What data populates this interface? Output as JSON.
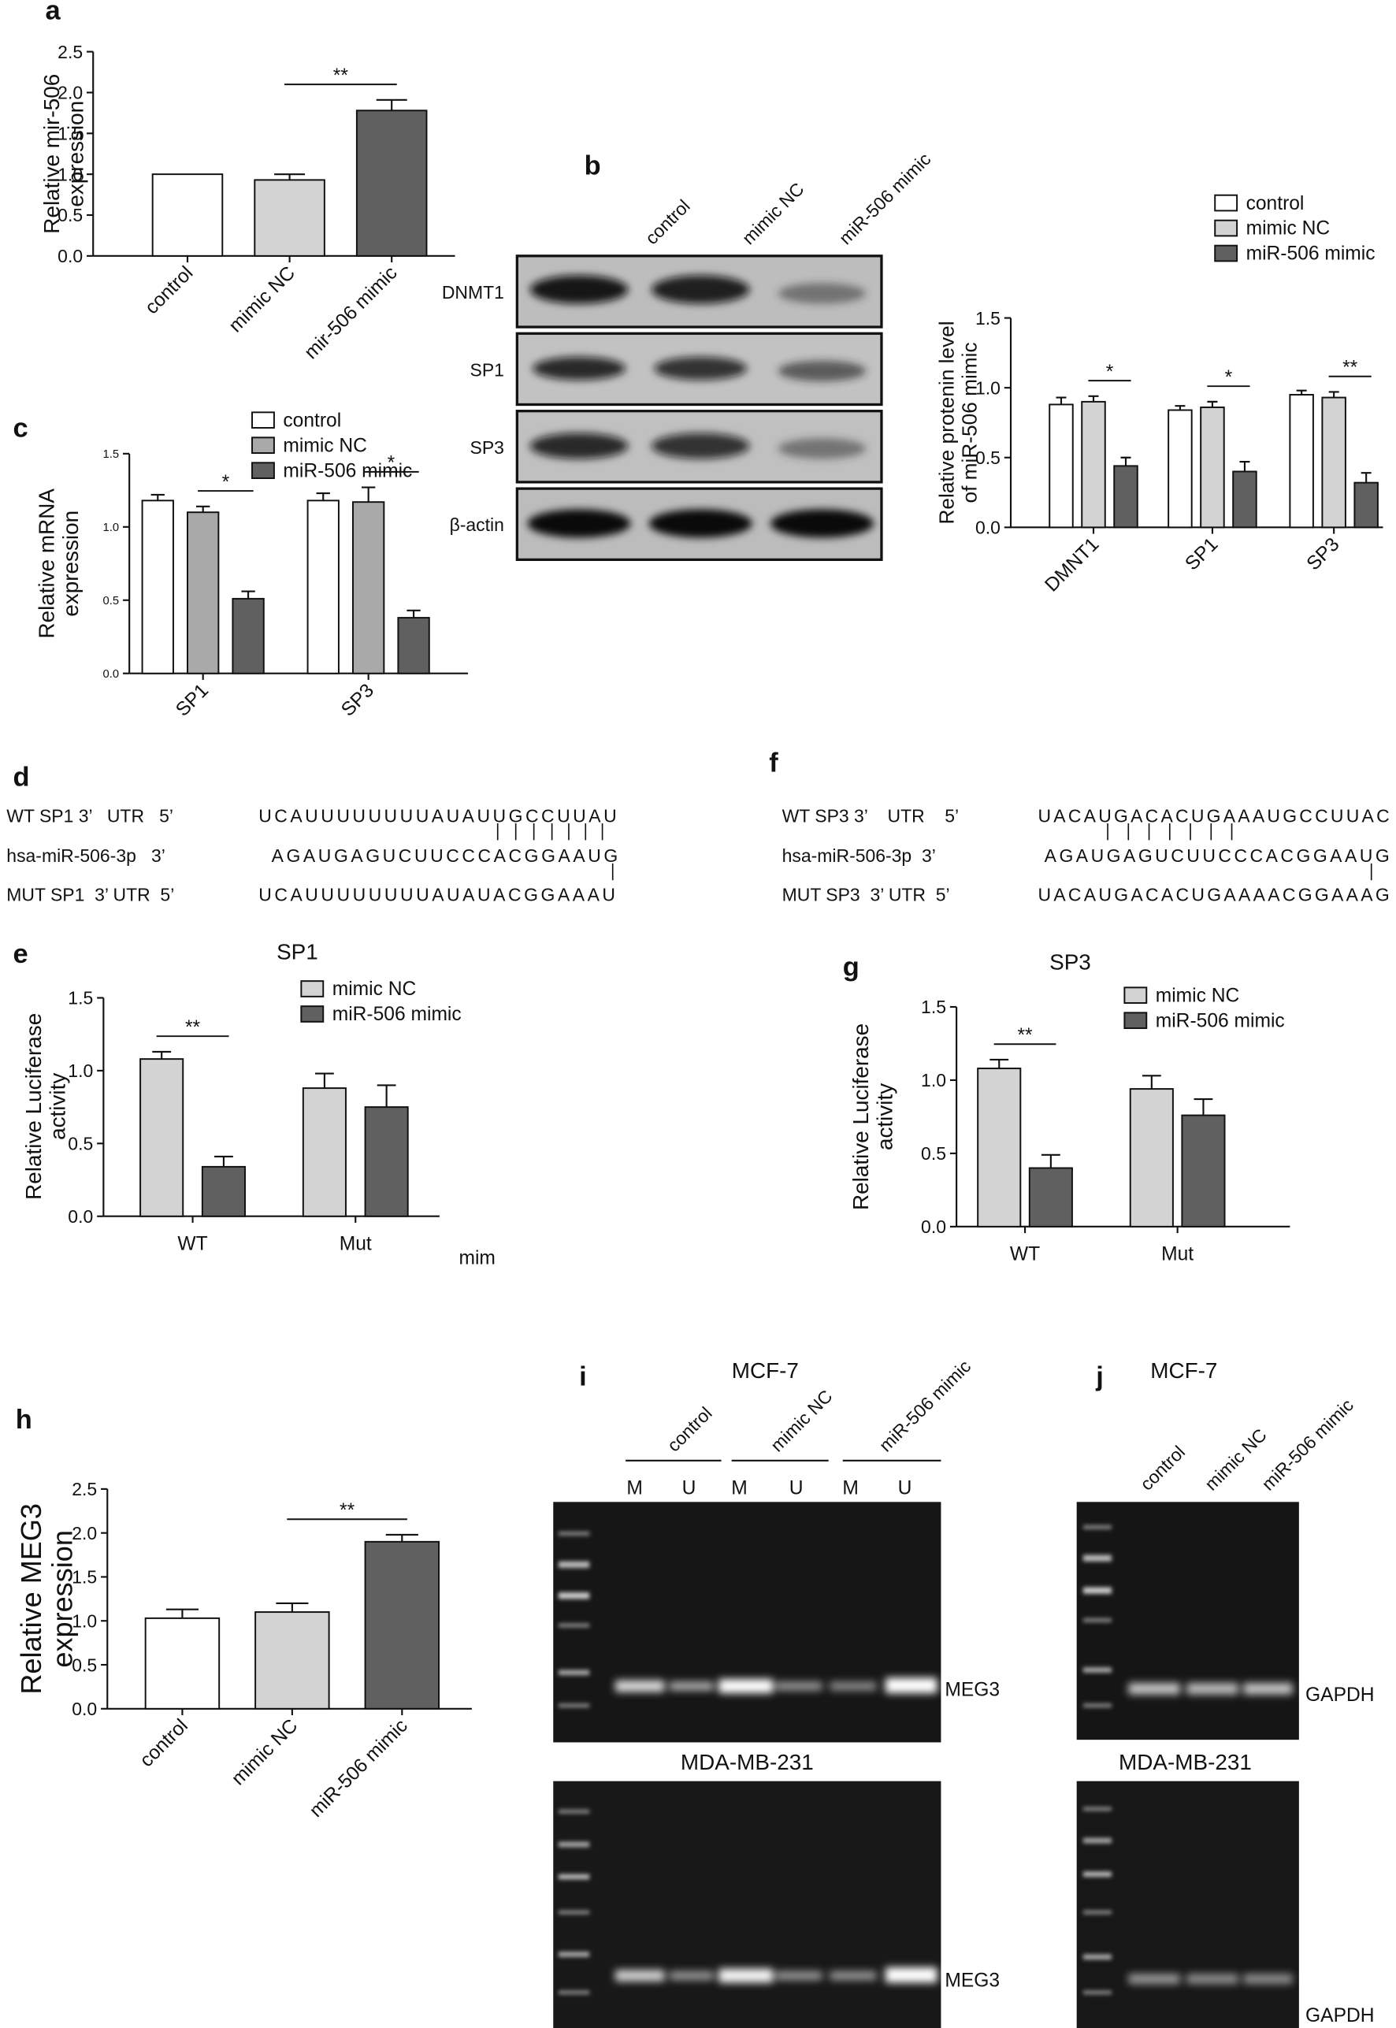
{
  "chart_data": [
    {
      "type": "bar",
      "ylabel": [
        "Relative mir-506",
        "expression"
      ],
      "categories": [
        "control",
        "mimic NC",
        "mir-506 mimic"
      ],
      "values": [
        1.0,
        0.93,
        1.78
      ],
      "errors": [
        0,
        0.07,
        0.13
      ],
      "colors": [
        "#ffffff",
        "#d3d3d3",
        "#606060"
      ],
      "ylim": [
        0,
        2.5
      ],
      "yticks": [
        {
          "value": 0,
          "label": "0.0"
        },
        0.5,
        {
          "value": 1,
          "label": "1.0"
        },
        1.5,
        {
          "value": 2,
          "label": "2.0"
        },
        2.5
      ],
      "annotations": [
        {
          "text": "**",
          "between": [
            1,
            2
          ]
        }
      ]
    },
    {
      "type": "bar",
      "ylabel": [
        "Relative protenin level",
        "of miR-506 mimic"
      ],
      "categories": [
        "DMNT1",
        "SP1",
        "SP3"
      ],
      "series": [
        {
          "name": "control",
          "color": "#ffffff",
          "values": [
            0.88,
            0.84,
            0.95
          ],
          "errors": [
            0.05,
            0.03,
            0.03
          ]
        },
        {
          "name": "mimic NC",
          "color": "#d3d3d3",
          "values": [
            0.9,
            0.86,
            0.93
          ],
          "errors": [
            0.04,
            0.04,
            0.04
          ]
        },
        {
          "name": "miR-506 mimic",
          "color": "#606060",
          "values": [
            0.44,
            0.4,
            0.32
          ],
          "errors": [
            0.06,
            0.07,
            0.07
          ]
        }
      ],
      "ylim": [
        0,
        1.5
      ],
      "yticks": [
        {
          "value": 0,
          "label": "0.0"
        },
        0.5,
        {
          "value": 1,
          "label": "1.0"
        },
        1.5
      ],
      "annotations": [
        {
          "text": "*",
          "group": 0,
          "between": [
            1,
            2
          ]
        },
        {
          "text": "*",
          "group": 1,
          "between": [
            1,
            2
          ]
        },
        {
          "text": "**",
          "group": 2,
          "between": [
            1,
            2
          ]
        }
      ]
    },
    {
      "type": "bar",
      "ylabel": [
        "Relative mRNA",
        "expression"
      ],
      "categories": [
        "SP1",
        "SP3"
      ],
      "series": [
        {
          "name": "control",
          "color": "#ffffff",
          "values": [
            1.18,
            1.18
          ],
          "errors": [
            0.04,
            0.05
          ]
        },
        {
          "name": "mimic NC",
          "color": "#a9a9a9",
          "values": [
            1.1,
            1.17
          ],
          "errors": [
            0.04,
            0.1
          ]
        },
        {
          "name": "miR-506 mimic",
          "color": "#606060",
          "values": [
            0.51,
            0.38
          ],
          "errors": [
            0.05,
            0.05
          ]
        }
      ],
      "ylim": [
        0,
        1.5
      ],
      "yticks": [
        {
          "value": 0,
          "label": "0.0"
        },
        0.5,
        {
          "value": 1,
          "label": "1.0"
        },
        1.5
      ],
      "annotations": [
        {
          "text": "*",
          "group": 0,
          "between": [
            1,
            2
          ]
        },
        {
          "text": "*",
          "group": 1,
          "between": [
            1,
            2
          ]
        }
      ]
    },
    {
      "type": "bar",
      "title": "SP1",
      "ylabel": [
        "Relative Luciferase",
        "activity"
      ],
      "categories": [
        "WT",
        "Mut"
      ],
      "series": [
        {
          "name": "mimic NC",
          "color": "#d3d3d3",
          "values": [
            1.08,
            0.88
          ],
          "errors": [
            0.05,
            0.1
          ]
        },
        {
          "name": "miR-506 mimic",
          "color": "#606060",
          "values": [
            0.34,
            0.75
          ],
          "errors": [
            0.07,
            0.15
          ]
        }
      ],
      "ylim": [
        0,
        1.5
      ],
      "yticks": [
        {
          "value": 0,
          "label": "0.0"
        },
        0.5,
        {
          "value": 1,
          "label": "1.0"
        },
        1.5
      ],
      "annotations": [
        {
          "text": "**",
          "group": 0,
          "between": [
            0,
            1
          ]
        },
        {
          "text": "mim"
        }
      ]
    },
    {
      "type": "bar",
      "title": "SP3",
      "ylabel": [
        "Relative Luciferase",
        "activity"
      ],
      "categories": [
        "WT",
        "Mut"
      ],
      "series": [
        {
          "name": "mimic NC",
          "color": "#d3d3d3",
          "values": [
            1.08,
            0.94
          ],
          "errors": [
            0.06,
            0.09
          ]
        },
        {
          "name": "miR-506 mimic",
          "color": "#606060",
          "values": [
            0.4,
            0.76
          ],
          "errors": [
            0.09,
            0.11
          ]
        }
      ],
      "ylim": [
        0,
        1.5
      ],
      "yticks": [
        {
          "value": 0,
          "label": "0.0"
        },
        0.5,
        {
          "value": 1,
          "label": "1.0"
        },
        1.5
      ],
      "annotations": [
        {
          "text": "**",
          "group": 0,
          "between": [
            0,
            1
          ]
        }
      ]
    },
    {
      "type": "bar",
      "ylabel": [
        "Relative MEG3",
        "expression"
      ],
      "categories": [
        "control",
        "mimic NC",
        "miR-506 mimic"
      ],
      "values": [
        1.03,
        1.1,
        1.9
      ],
      "errors": [
        0.1,
        0.1,
        0.08
      ],
      "colors": [
        "#ffffff",
        "#d3d3d3",
        "#606060"
      ],
      "ylim": [
        0,
        2.5
      ],
      "yticks": [
        {
          "value": 0,
          "label": "0.0"
        },
        0.5,
        {
          "value": 1,
          "label": "1.0"
        },
        1.5,
        {
          "value": 2,
          "label": "2.0"
        },
        2.5
      ],
      "annotations": [
        {
          "text": "**",
          "between": [
            1,
            2
          ]
        }
      ]
    }
  ],
  "figure": {
    "panel_labels": [
      "a",
      "b",
      "c",
      "d",
      "e",
      "f",
      "g",
      "h",
      "i",
      "j"
    ],
    "blot": {
      "lanes": [
        "control",
        "mimic NC",
        "miR-506 mimic"
      ],
      "rows": [
        "DNMT1",
        "SP1",
        "SP3",
        "β-actin"
      ]
    },
    "sequences": [
      {
        "rows": [
          {
            "label": "WT SP1 3’   UTR   5’",
            "seq": "UCAUUUUUUUUAUAUUGCCUUAU"
          },
          {
            "label": "hsa-miR-506-3p   3’",
            "seq": "AGAUGAGUCUUCCCACGGAAUG"
          },
          {
            "label": "MUT SP1  3’ UTR  5’",
            "seq": "UCAUUUUUUUUAUAUACGGAAAU"
          }
        ]
      },
      {
        "rows": [
          {
            "label": "WT SP3 3’    UTR    5’",
            "seq": "UACAUGACACUGAAAUGCCUUAC"
          },
          {
            "label": "hsa-miR-506-3p  3’",
            "seq": "AGAUGAGUCUUCCCACGGAAUG"
          },
          {
            "label": "MUT SP3  3’ UTR  5’",
            "seq": "UACAUGACACUGAAAACGGAAAG"
          }
        ]
      }
    ],
    "gel_i": {
      "title": "MCF-7",
      "lanes": [
        "control",
        "mimic NC",
        "miR-506 mimic"
      ],
      "wells": [
        "M",
        "U",
        "M",
        "U",
        "M",
        "U"
      ],
      "band": "MEG3",
      "subtitle": "MDA-MB-231",
      "band2": "MEG3"
    },
    "gel_j": {
      "title": "MCF-7",
      "lanes": [
        "control",
        "mimic NC",
        "miR-506 mimic"
      ],
      "band": "GAPDH",
      "subtitle": "MDA-MB-231",
      "band2": "GAPDH"
    }
  }
}
